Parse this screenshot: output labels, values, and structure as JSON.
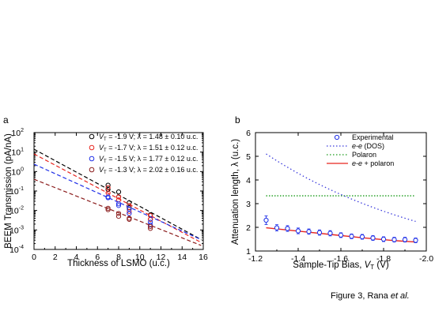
{
  "figure": {
    "caption_prefix": "Figure 3, Rana ",
    "caption_em": "et al."
  },
  "chart_data": [
    {
      "panel": "a",
      "type": "scatter",
      "xlabel": "Thickness of LSMO (u.c.)",
      "ylabel": "BEEM Transmission (pA/nA)",
      "xlim": [
        0,
        16
      ],
      "ylim_log10": [
        -4,
        2
      ],
      "y_scale": "log",
      "x_ticks": [
        "0",
        "2",
        "4",
        "6",
        "8",
        "10",
        "12",
        "14",
        "16"
      ],
      "y_tick_exponents": [
        "-4",
        "-3",
        "-2",
        "-1",
        "0",
        "1",
        "2"
      ],
      "y_tick_base": "10",
      "legend_placement": "top-right",
      "series": [
        {
          "legend": [
            "V",
            "T",
            " = -1.9 V; λ = 1.48 ± 0.10 u.c."
          ],
          "color": "#000000",
          "fit_intercept": 14,
          "fit_lambda": 1.48,
          "points": [
            [
              7,
              0.2
            ],
            [
              7,
              0.12
            ],
            [
              8,
              0.09
            ],
            [
              8,
              0.05
            ],
            [
              9,
              0.025
            ],
            [
              9,
              0.014
            ],
            [
              11,
              0.006
            ],
            [
              11,
              0.0035
            ]
          ]
        },
        {
          "legend": [
            "V",
            "T",
            " = -1.7 V; λ = 1.51 ± 0.12 u.c."
          ],
          "color": "#e8251f",
          "fit_intercept": 8,
          "fit_lambda": 1.51,
          "points": [
            [
              7,
              0.15
            ],
            [
              7,
              0.08
            ],
            [
              8,
              0.05
            ],
            [
              8,
              0.035
            ],
            [
              9,
              0.018
            ],
            [
              9,
              0.009
            ],
            [
              11,
              0.0055
            ],
            [
              11,
              0.0035
            ]
          ]
        },
        {
          "legend": [
            "V",
            "T",
            " = -1.5 V; λ = 1.77 ± 0.12 u.c."
          ],
          "color": "#1f2fe8",
          "fit_intercept": 2.4,
          "fit_lambda": 1.77,
          "points": [
            [
              7,
              0.05
            ],
            [
              7,
              0.045
            ],
            [
              8,
              0.022
            ],
            [
              8,
              0.018
            ],
            [
              9,
              0.012
            ],
            [
              9,
              0.007
            ],
            [
              11,
              0.0025
            ],
            [
              11,
              0.0018
            ]
          ]
        },
        {
          "legend": [
            "V",
            "T",
            " = -1.3 V; λ = 2.02 ± 0.16 u.c."
          ],
          "color": "#8b1d1d",
          "fit_intercept": 0.4,
          "fit_lambda": 2.02,
          "points": [
            [
              7,
              0.013
            ],
            [
              7,
              0.011
            ],
            [
              8,
              0.007
            ],
            [
              8,
              0.005
            ],
            [
              9,
              0.004
            ],
            [
              9,
              0.0035
            ],
            [
              11,
              0.0015
            ],
            [
              11,
              0.0012
            ]
          ]
        }
      ]
    },
    {
      "panel": "b",
      "type": "line",
      "xlabel_parts": [
        "Sample-Tip Bias, ",
        "V",
        "T",
        " (V)"
      ],
      "ylabel": "Attenuation length, λ (u.c.)",
      "xlim": [
        -1.2,
        -2.0
      ],
      "ylim": [
        1,
        6
      ],
      "x_ticks": [
        "-1.2",
        "-1.4",
        "-1.6",
        "-1.8",
        "-2.0"
      ],
      "y_ticks": [
        "1",
        "2",
        "3",
        "4",
        "5",
        "6"
      ],
      "legend_placement": "top-right",
      "legend": [
        {
          "parts": [
            "Experimental"
          ],
          "style": "circle",
          "color": "#1f2fe8"
        },
        {
          "parts": [
            "e-e",
            " (DOS)"
          ],
          "style": "dotted",
          "color": "#3a3adc"
        },
        {
          "parts": [
            "Polaron"
          ],
          "style": "dotted",
          "color": "#1a9a1a"
        },
        {
          "parts": [
            "e-e",
            " + polaron"
          ],
          "style": "solid",
          "color": "#e8251f"
        }
      ],
      "experimental": {
        "x": [
          -1.25,
          -1.3,
          -1.35,
          -1.4,
          -1.45,
          -1.5,
          -1.55,
          -1.6,
          -1.65,
          -1.7,
          -1.75,
          -1.8,
          -1.85,
          -1.9,
          -1.95
        ],
        "y": [
          2.3,
          1.98,
          1.95,
          1.85,
          1.82,
          1.78,
          1.75,
          1.67,
          1.62,
          1.6,
          1.55,
          1.5,
          1.48,
          1.48,
          1.45
        ],
        "err": [
          0.18,
          0.13,
          0.12,
          0.12,
          0.11,
          0.11,
          0.11,
          0.1,
          0.1,
          0.1,
          0.1,
          0.1,
          0.1,
          0.1,
          0.1
        ]
      },
      "ee_dos": {
        "x_start": -1.25,
        "x_end": -1.95,
        "y_start": 5.1,
        "y_end": 2.25
      },
      "polaron": {
        "y": 3.33,
        "x_start": -1.25,
        "x_end": -1.95
      },
      "ee_polaron": {
        "x": [
          -1.25,
          -1.4,
          -1.55,
          -1.7,
          -1.85,
          -1.95
        ],
        "y": [
          1.98,
          1.84,
          1.7,
          1.56,
          1.44,
          1.38
        ]
      }
    }
  ]
}
